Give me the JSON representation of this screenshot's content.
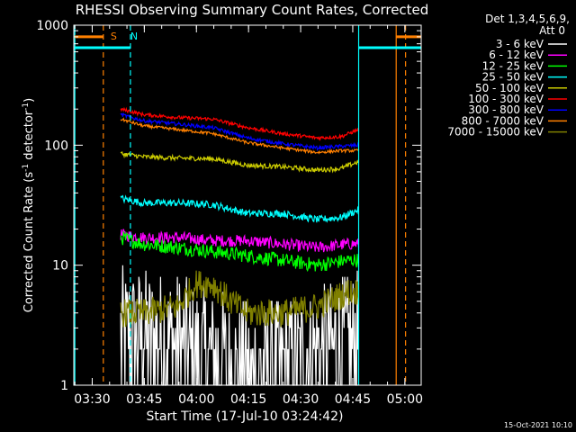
{
  "chart_data": {
    "type": "line",
    "title": "RHESSI Observing Summary Count Rates, Corrected",
    "xlabel": "Start Time (17-Jul-10 03:24:42)",
    "ylabel_main": "Corrected Count Rate (s",
    "ylabel_sup1": "-1",
    "ylabel_mid": " detector",
    "ylabel_sup2": "-1",
    "ylabel_end": ")",
    "yscale": "log",
    "ylim": [
      1,
      1000
    ],
    "xlim_minutes": [
      0,
      100
    ],
    "x_ticks": [
      {
        "label": "03:30",
        "t": 5.3
      },
      {
        "label": "03:45",
        "t": 20.3
      },
      {
        "label": "04:00",
        "t": 35.3
      },
      {
        "label": "04:15",
        "t": 50.3
      },
      {
        "label": "04:30",
        "t": 65.3
      },
      {
        "label": "04:45",
        "t": 80.3
      },
      {
        "label": "05:00",
        "t": 95.3
      }
    ],
    "y_ticks": [
      {
        "label": "1",
        "value": 1
      },
      {
        "label": "10",
        "value": 10
      },
      {
        "label": "100",
        "value": 100
      },
      {
        "label": "1000",
        "value": 1000
      }
    ],
    "legend_header": [
      "Det 1,3,4,5,6,9,",
      "Att 0"
    ],
    "series": [
      {
        "name": "3 - 6 keV",
        "color": "#ffffff",
        "knots": [
          [
            13.5,
            2.5
          ],
          [
            20,
            2.5
          ],
          [
            30,
            2.2
          ],
          [
            40,
            1.6
          ],
          [
            50,
            1.3
          ],
          [
            60,
            1.4
          ],
          [
            70,
            1.8
          ],
          [
            79,
            2.2
          ],
          [
            82,
            2.2
          ]
        ],
        "noise": 0.6
      },
      {
        "name": "6 - 12 keV",
        "color": "#ff00ff",
        "knots": [
          [
            13.5,
            18
          ],
          [
            20,
            17
          ],
          [
            30,
            17
          ],
          [
            40,
            16
          ],
          [
            50,
            16
          ],
          [
            60,
            15
          ],
          [
            70,
            14
          ],
          [
            79,
            15
          ],
          [
            82,
            15
          ]
        ],
        "noise": 0.05
      },
      {
        "name": "12 - 25 keV",
        "color": "#00ff00",
        "knots": [
          [
            13.5,
            17
          ],
          [
            20,
            15
          ],
          [
            30,
            14
          ],
          [
            40,
            13
          ],
          [
            50,
            12
          ],
          [
            60,
            11
          ],
          [
            70,
            10
          ],
          [
            79,
            11
          ],
          [
            82,
            11
          ]
        ],
        "noise": 0.06
      },
      {
        "name": "25 - 50 keV",
        "color": "#00ffff",
        "knots": [
          [
            13.5,
            36
          ],
          [
            20,
            33
          ],
          [
            30,
            33
          ],
          [
            40,
            32
          ],
          [
            50,
            27
          ],
          [
            60,
            27
          ],
          [
            70,
            24
          ],
          [
            77,
            25
          ],
          [
            82,
            29
          ]
        ],
        "noise": 0.03
      },
      {
        "name": "50 - 100 keV",
        "color": "#cccc00",
        "knots": [
          [
            13.5,
            85
          ],
          [
            20,
            80
          ],
          [
            30,
            78
          ],
          [
            40,
            77
          ],
          [
            50,
            68
          ],
          [
            60,
            66
          ],
          [
            70,
            62
          ],
          [
            77,
            64
          ],
          [
            82,
            73
          ]
        ],
        "noise": 0.02
      },
      {
        "name": "100 - 300 keV",
        "color": "#ff0000",
        "knots": [
          [
            13.5,
            200
          ],
          [
            20,
            180
          ],
          [
            30,
            170
          ],
          [
            40,
            165
          ],
          [
            50,
            140
          ],
          [
            60,
            125
          ],
          [
            70,
            115
          ],
          [
            77,
            118
          ],
          [
            82,
            135
          ]
        ],
        "noise": 0.015
      },
      {
        "name": "300 - 800 keV",
        "color": "#0000ff",
        "knots": [
          [
            13.5,
            180
          ],
          [
            20,
            160
          ],
          [
            30,
            150
          ],
          [
            40,
            140
          ],
          [
            50,
            115
          ],
          [
            60,
            103
          ],
          [
            70,
            95
          ],
          [
            77,
            98
          ],
          [
            82,
            100
          ]
        ],
        "noise": 0.015
      },
      {
        "name": "800 - 7000 keV",
        "color": "#ff8000",
        "knots": [
          [
            13.5,
            165
          ],
          [
            20,
            145
          ],
          [
            30,
            135
          ],
          [
            40,
            125
          ],
          [
            50,
            105
          ],
          [
            60,
            95
          ],
          [
            70,
            87
          ],
          [
            77,
            90
          ],
          [
            82,
            90
          ]
        ],
        "noise": 0.012
      },
      {
        "name": "7000 - 15000 keV",
        "color": "#808000",
        "knots": [
          [
            13.5,
            4
          ],
          [
            20,
            4
          ],
          [
            30,
            4.5
          ],
          [
            35,
            7
          ],
          [
            40,
            7
          ],
          [
            45,
            5
          ],
          [
            50,
            4
          ],
          [
            60,
            4
          ],
          [
            70,
            4.5
          ],
          [
            79,
            6
          ],
          [
            82,
            6
          ]
        ],
        "noise": 0.12
      }
    ],
    "annotations": [
      {
        "label": "S",
        "color": "#ff8000",
        "t": 10.6
      },
      {
        "label": "N",
        "color": "#00ffff",
        "t": 16.3
      }
    ],
    "attenuator_bars": [
      {
        "color": "#ff8000",
        "t_start": 0.3,
        "t_end": 8.5,
        "value": 800
      },
      {
        "color": "#00ffff",
        "t_start": 0.3,
        "t_end": 16.3,
        "value": 650
      },
      {
        "color": "#00ffff",
        "t_start": 82.0,
        "t_end": 100,
        "value": 650
      },
      {
        "color": "#ff8000",
        "t_start": 92.8,
        "t_end": 100,
        "value": 800
      }
    ],
    "vertical_lines": [
      {
        "color": "#00ffff",
        "t": 0.3,
        "style": "solid"
      },
      {
        "color": "#ff8000",
        "t": 8.5,
        "style": "dashed"
      },
      {
        "color": "#00ffff",
        "t": 16.3,
        "style": "dashed"
      },
      {
        "color": "#00ffff",
        "t": 82.0,
        "style": "solid"
      },
      {
        "color": "#ff8000",
        "t": 92.8,
        "style": "solid"
      },
      {
        "color": "#ff8000",
        "t": 95.5,
        "style": "dashed"
      }
    ]
  },
  "footer": {
    "timestamp": "15-Oct-2021 10:10"
  }
}
